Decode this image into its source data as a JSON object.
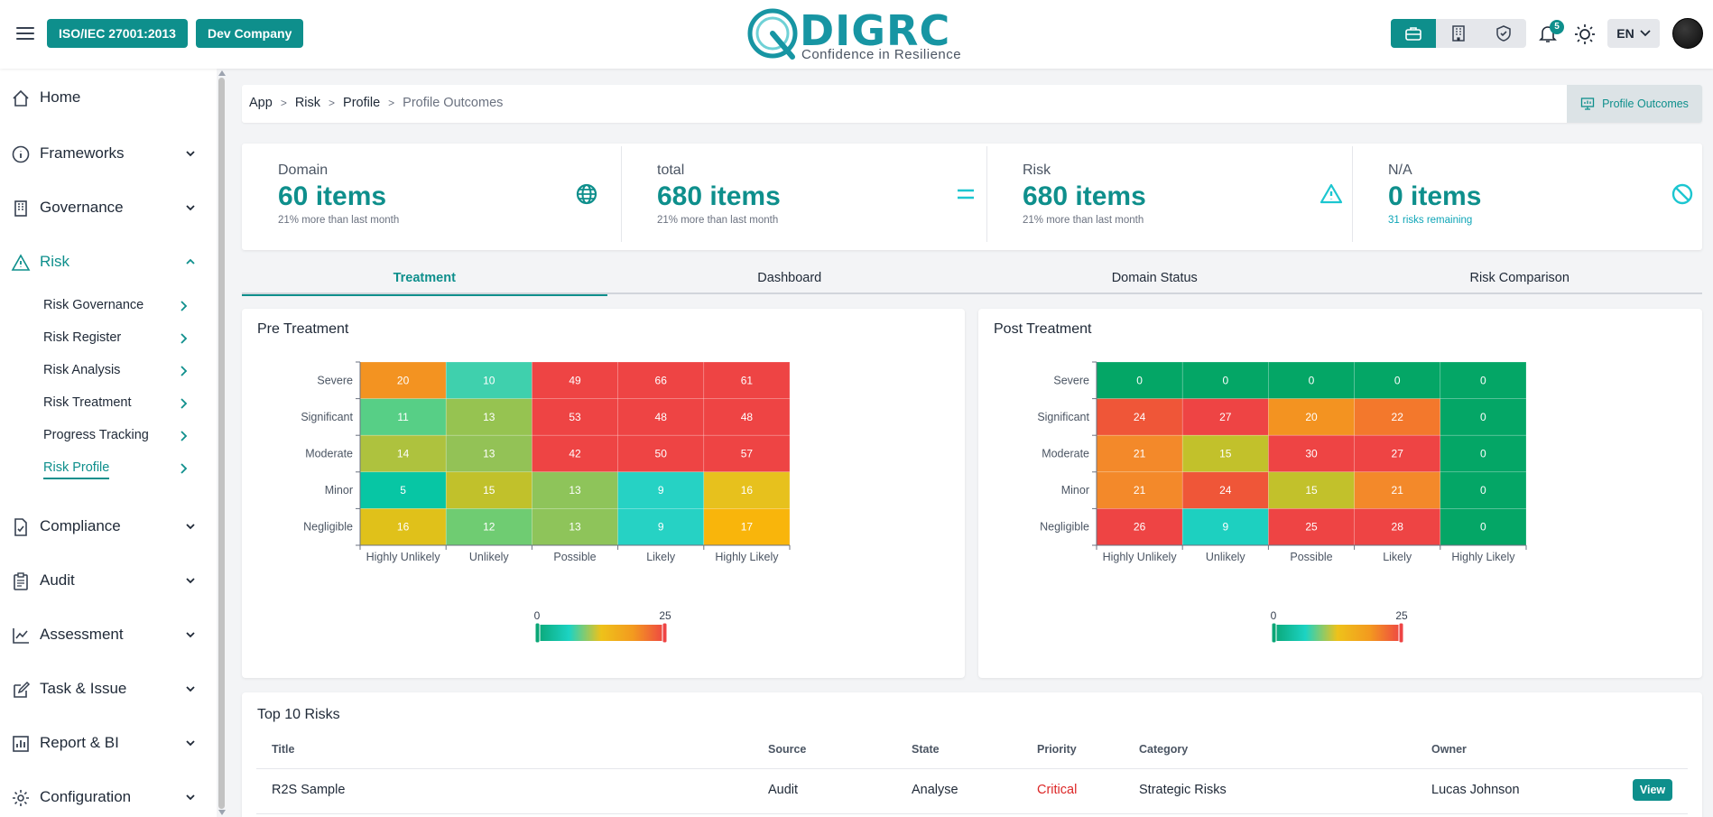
{
  "header": {
    "menu_icon": "menu-icon",
    "standard_pill": "ISO/IEC 27001:2013",
    "company_pill": "Dev Company",
    "logo_word": "DIGRC",
    "logo_tagline": "Confidence in Resilience",
    "segment_icons": [
      "briefcase-icon",
      "building-icon",
      "shield-check-icon"
    ],
    "notification_count": "5",
    "language": "EN",
    "accent_color": "#0e8f8c"
  },
  "sidebar": {
    "items": [
      {
        "label": "Home",
        "icon": "home-icon"
      },
      {
        "label": "Frameworks",
        "icon": "info-icon"
      },
      {
        "label": "Governance",
        "icon": "building-icon"
      },
      {
        "label": "Risk",
        "icon": "warning-icon"
      },
      {
        "label": "Compliance",
        "icon": "document-check-icon"
      },
      {
        "label": "Audit",
        "icon": "clipboard-icon"
      },
      {
        "label": "Assessment",
        "icon": "chart-line-icon"
      },
      {
        "label": "Task & Issue",
        "icon": "edit-icon"
      },
      {
        "label": "Report & BI",
        "icon": "bar-chart-icon"
      },
      {
        "label": "Configuration",
        "icon": "gear-icon"
      }
    ],
    "risk_subitems": [
      {
        "label": "Risk Governance"
      },
      {
        "label": "Risk Register"
      },
      {
        "label": "Risk Analysis"
      },
      {
        "label": "Risk Treatment"
      },
      {
        "label": "Progress Tracking"
      },
      {
        "label": "Risk Profile"
      }
    ]
  },
  "breadcrumb": {
    "items": [
      "App",
      "Risk",
      "Profile"
    ],
    "current": "Profile Outcomes",
    "action_label": "Profile Outcomes"
  },
  "stats": [
    {
      "label": "Domain",
      "value": "60 items",
      "sub": "21% more than last month",
      "icon": "globe-icon"
    },
    {
      "label": "total",
      "value": "680 items",
      "sub": "21% more than last month",
      "icon": "equals-icon"
    },
    {
      "label": "Risk",
      "value": "680 items",
      "sub": "21% more than last month",
      "icon": "warning-icon"
    },
    {
      "label": "N/A",
      "value": "0 items",
      "sub": "31 risks remaining",
      "icon": "block-icon"
    }
  ],
  "tabs": [
    "Treatment",
    "Dashboard",
    "Domain Status",
    "Risk Comparison"
  ],
  "pre_treatment": {
    "title": "Pre Treatment"
  },
  "post_treatment": {
    "title": "Post Treatment"
  },
  "chart_data": [
    {
      "type": "heatmap",
      "title": "Pre Treatment",
      "x_categories": [
        "Highly Unlikely",
        "Unlikely",
        "Possible",
        "Likely",
        "Highly Likely"
      ],
      "y_categories": [
        "Severe",
        "Significant",
        "Moderate",
        "Minor",
        "Negligible"
      ],
      "values": [
        [
          20,
          10,
          49,
          66,
          61
        ],
        [
          11,
          13,
          53,
          48,
          48
        ],
        [
          14,
          13,
          42,
          50,
          57
        ],
        [
          5,
          15,
          13,
          9,
          16
        ],
        [
          16,
          12,
          13,
          9,
          17
        ]
      ],
      "cell_colors": [
        [
          "#f39321",
          "#3fd0ad",
          "#ee4444",
          "#ee4444",
          "#ee4444"
        ],
        [
          "#57cf86",
          "#96c351",
          "#ee4444",
          "#ee4444",
          "#ee4444"
        ],
        [
          "#aec23e",
          "#93c256",
          "#ee4444",
          "#ee4444",
          "#ee4444"
        ],
        [
          "#07c6a4",
          "#c1c12b",
          "#8ec45a",
          "#26d2c4",
          "#e7c11d"
        ],
        [
          "#e0c11a",
          "#6fcc72",
          "#8ec45a",
          "#26d2c4",
          "#f9b50b"
        ]
      ],
      "visual_map": {
        "min": 0,
        "max": 25,
        "colors": [
          "#0aa676",
          "#1cd3c3",
          "#eec21a",
          "#f39a1f",
          "#ee4444"
        ]
      }
    },
    {
      "type": "heatmap",
      "title": "Post Treatment",
      "x_categories": [
        "Highly Unlikely",
        "Unlikely",
        "Possible",
        "Likely",
        "Highly Likely"
      ],
      "y_categories": [
        "Severe",
        "Significant",
        "Moderate",
        "Minor",
        "Negligible"
      ],
      "values": [
        [
          0,
          0,
          0,
          0,
          0
        ],
        [
          24,
          27,
          20,
          22,
          0
        ],
        [
          21,
          15,
          30,
          27,
          0
        ],
        [
          21,
          24,
          15,
          21,
          0
        ],
        [
          26,
          9,
          25,
          28,
          0
        ]
      ],
      "cell_colors": [
        [
          "#04a666",
          "#04a666",
          "#04a666",
          "#04a666",
          "#04a666"
        ],
        [
          "#ef5638",
          "#ee4444",
          "#f39321",
          "#f3782c",
          "#04a666"
        ],
        [
          "#f3892a",
          "#c2c12b",
          "#ee4444",
          "#ee4444",
          "#04a666"
        ],
        [
          "#f3892a",
          "#ef5638",
          "#c2c12b",
          "#f3892a",
          "#04a666"
        ],
        [
          "#ee4444",
          "#1dd0c0",
          "#ee4444",
          "#ee4444",
          "#04a666"
        ]
      ],
      "visual_map": {
        "min": 0,
        "max": 25,
        "colors": [
          "#0aa676",
          "#1cd3c3",
          "#eec21a",
          "#f39a1f",
          "#ee4444"
        ]
      }
    }
  ],
  "top_risks": {
    "title": "Top 10 Risks",
    "columns": [
      "Title",
      "Source",
      "State",
      "Priority",
      "Category",
      "Owner"
    ],
    "rows": [
      {
        "title": "R2S Sample",
        "source": "Audit",
        "state": "Analyse",
        "priority": "Critical",
        "category": "Strategic Risks",
        "owner": "Lucas Johnson",
        "action": "View"
      }
    ]
  }
}
